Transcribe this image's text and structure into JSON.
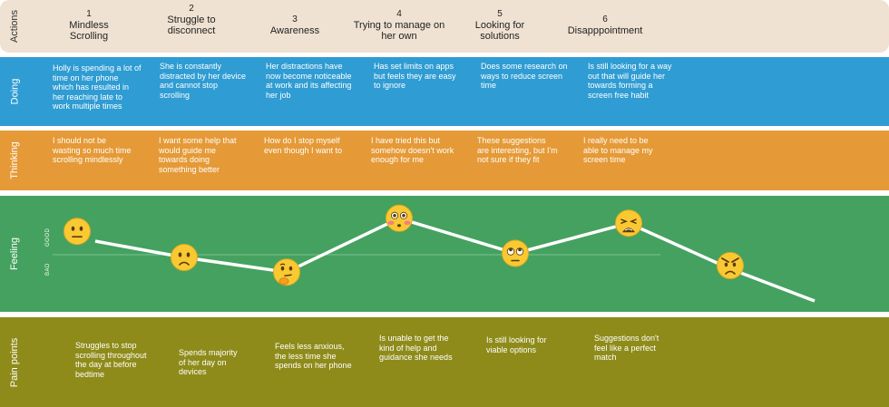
{
  "rows": {
    "actions": "Actions",
    "doing": "Doing",
    "thinking": "Thinking",
    "feeling": "Feeling",
    "pain": "Pain points"
  },
  "stages": [
    {
      "num": "1",
      "title": "Mindless Scrolling"
    },
    {
      "num": "2",
      "title": "Struggle to disconnect"
    },
    {
      "num": "3",
      "title": "Awareness"
    },
    {
      "num": "4",
      "title": "Trying to manage on her own"
    },
    {
      "num": "5",
      "title": "Looking for solutions"
    },
    {
      "num": "6",
      "title": "Disapppointment"
    }
  ],
  "doing": [
    "Holly is spending a lot of time on her phone which has resulted in her reaching late to work multiple times",
    "She is constantly distracted by her device and cannot stop scrolling",
    "Her distractions have now become noticeable at work and its affecting her job",
    "Has set limits on apps but feels they are easy to ignore",
    "Does some research on ways to reduce screen time",
    "Is still looking for a way out that will guide her towards forming a screen free habit"
  ],
  "thinking": [
    "I should not be wasting so much time scrolling mindlessly",
    "I want some help that would guide me towards doing something better",
    "How do I stop myself even though I want to",
    "I have tried this but somehow doesn't work enough for me",
    "These suggestions are interesting, but I'm not sure if they fit",
    "I really need to be able to manage my screen time"
  ],
  "feeling_scale": {
    "good": "GOOD",
    "bad": "BAD"
  },
  "pain_points": [
    "Struggles to stop scrolling throughout the day at before bedtime",
    "Spends majority of her day on devices",
    "Feels less anxious, the less time she spends on her phone",
    "Is unable to get the kind of help and guidance she needs",
    "Is still looking for viable options",
    "Suggestions don't feel like a perfect match"
  ],
  "emotions": [
    {
      "face": "neutral-face-icon",
      "level": 0.72
    },
    {
      "face": "frowning-face-icon",
      "level": 0.4
    },
    {
      "face": "thinking-face-icon",
      "level": 0.22
    },
    {
      "face": "flushed-face-icon",
      "level": 0.88
    },
    {
      "face": "face-with-rolling-eyes-icon",
      "level": 0.45
    },
    {
      "face": "weary-face-icon",
      "level": 0.82
    },
    {
      "face": "angry-face-icon",
      "level": 0.3
    }
  ],
  "colors": {
    "actions": "#efe2d2",
    "doing": "#2f9cd3",
    "thinking": "#e59a37",
    "feeling": "#45a15f",
    "pain": "#8e8b1a",
    "emoji": "#f9c933"
  }
}
